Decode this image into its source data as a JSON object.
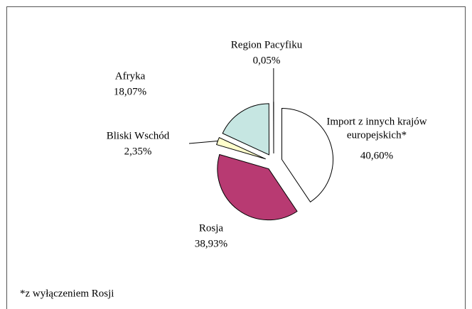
{
  "chart_data": {
    "type": "pie",
    "categories": [
      [
        "Import z innych krajów",
        "europejskich*"
      ],
      [
        "Rosja"
      ],
      [
        "Bliski Wschód"
      ],
      [
        "Afryka"
      ],
      [
        "Region Pacyfiku"
      ]
    ],
    "values": [
      40.6,
      38.93,
      2.35,
      18.07,
      0.05
    ],
    "value_labels": [
      "40,60%",
      "38,93%",
      "2,35%",
      "18,07%",
      "0,05%"
    ],
    "colors": [
      "#ffffff",
      "#b83a72",
      "#ffffcc",
      "#c6e6e2",
      "#ffffff"
    ],
    "footnote": "*z wyłączeniem Rosji"
  }
}
